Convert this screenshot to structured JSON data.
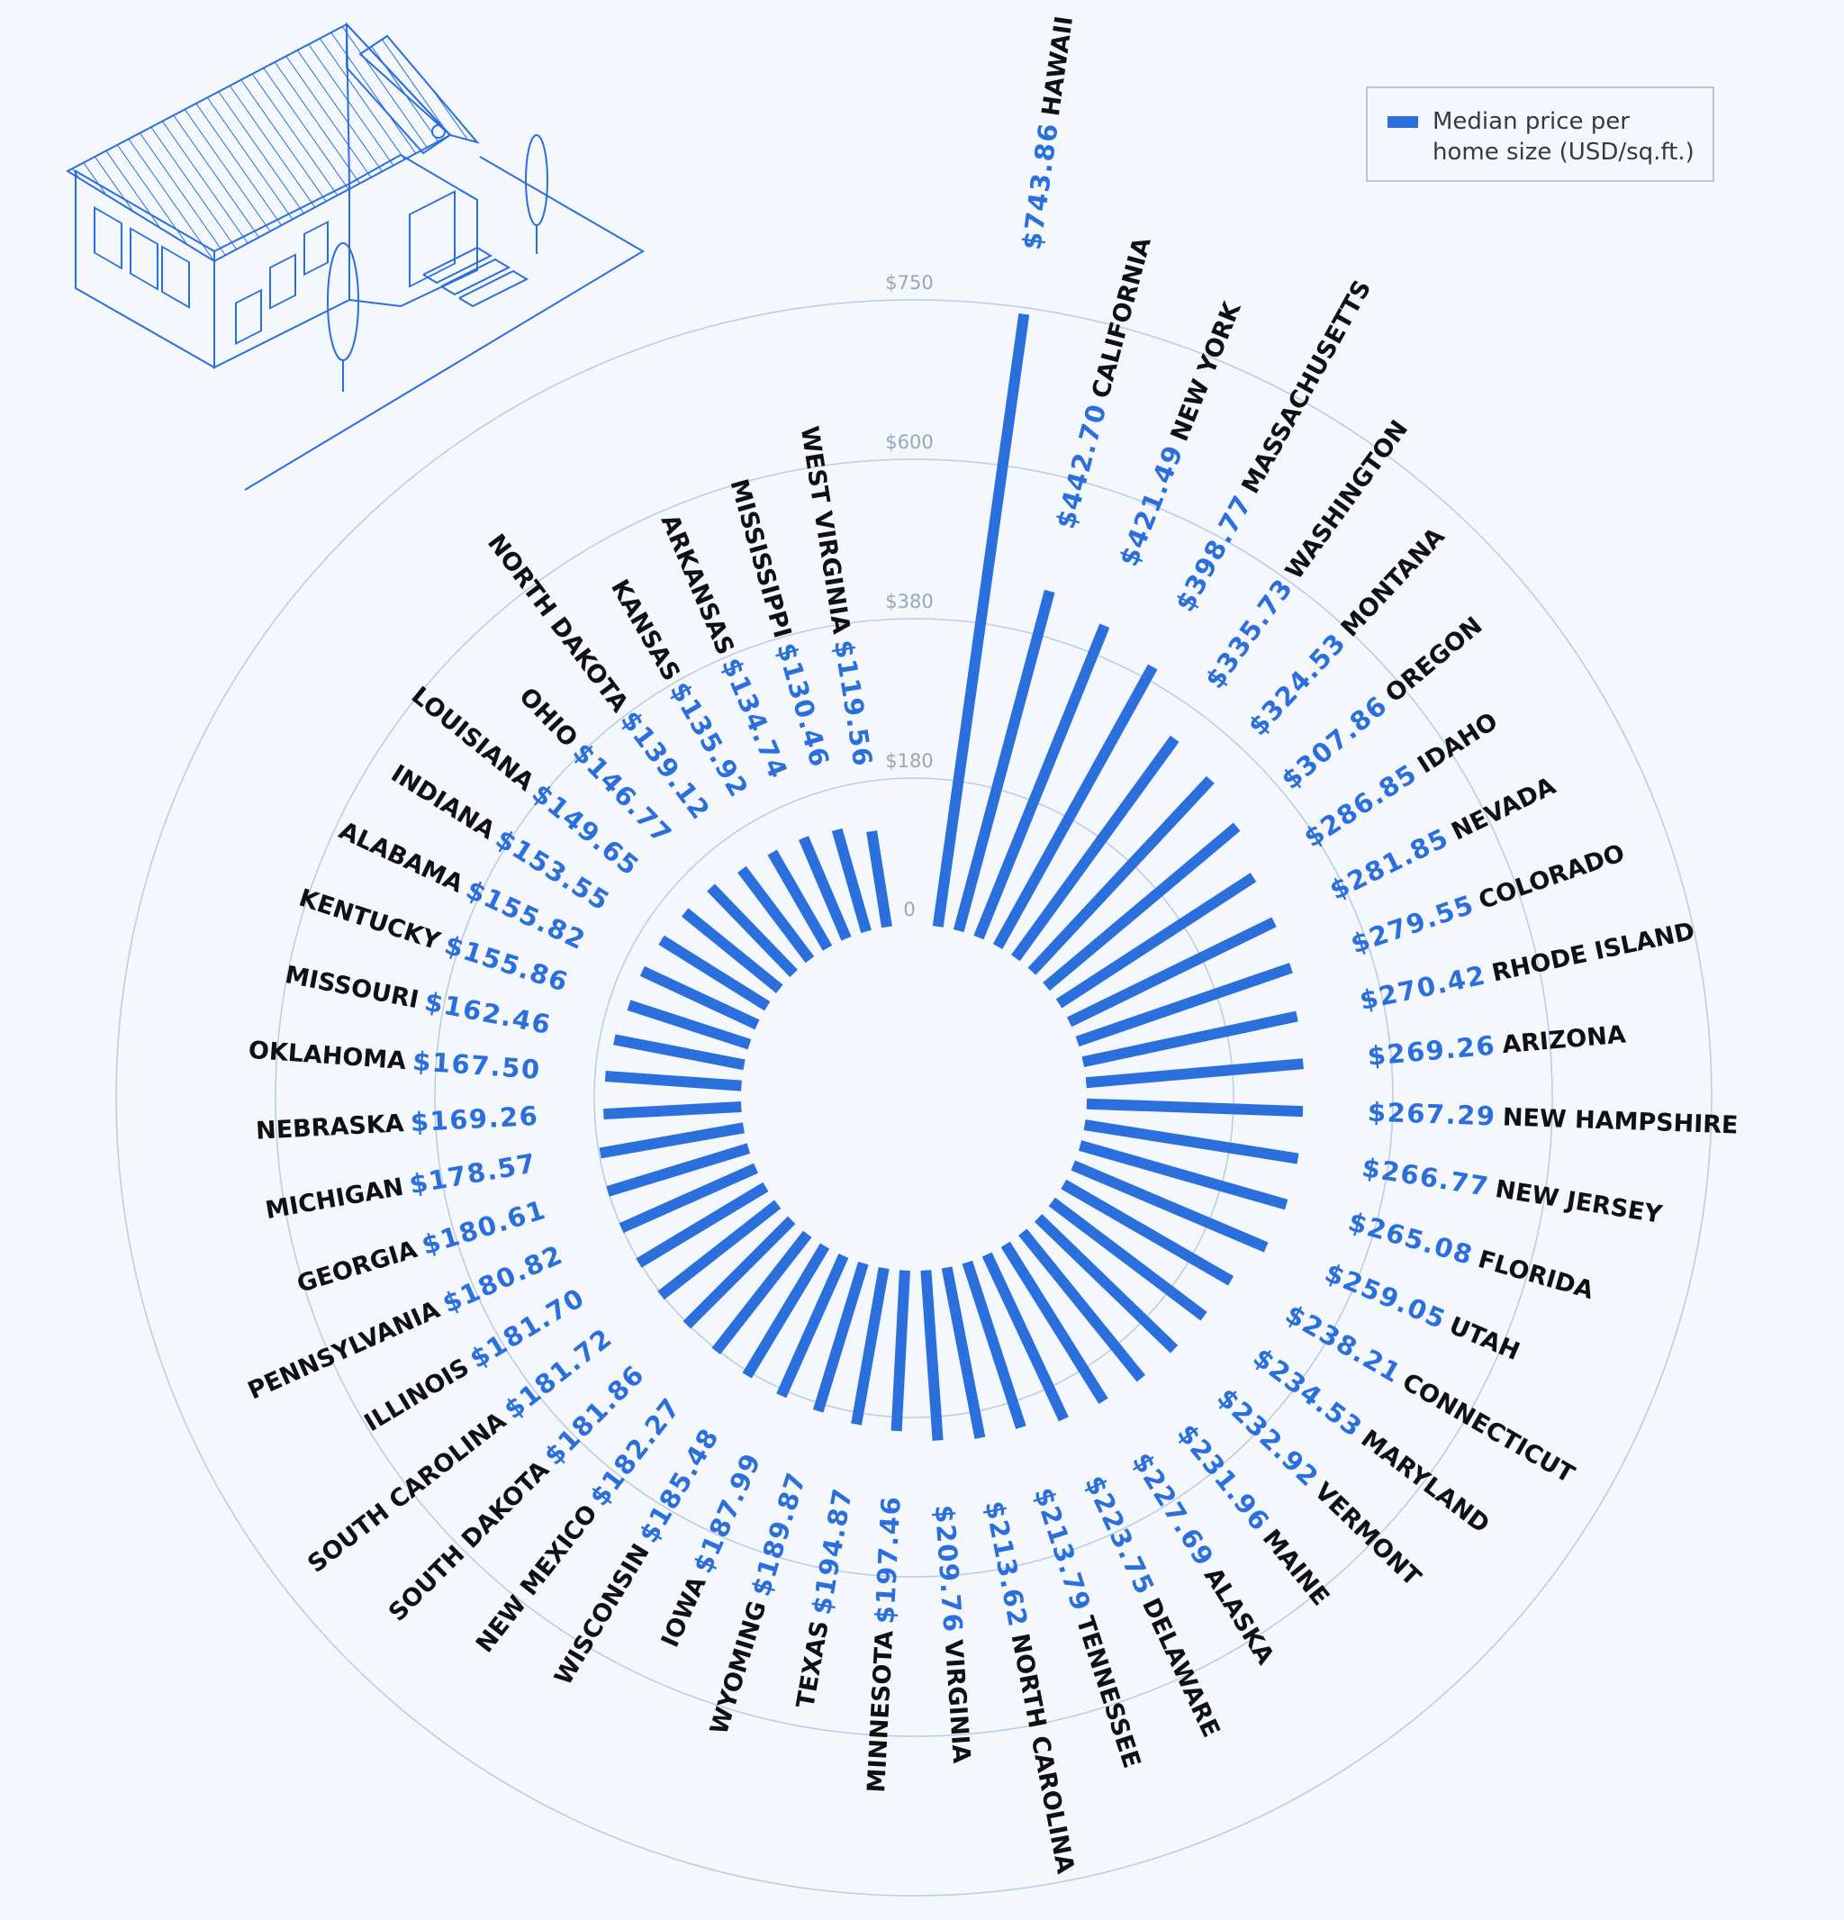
{
  "chart_data": {
    "type": "radial-bar",
    "title": "",
    "legend": {
      "label_line1": "Median price per",
      "label_line2": "home size (USD/sq.ft.)",
      "placement": "top-right"
    },
    "value_unit": "USD/sq.ft.",
    "ticks": [
      {
        "value": 0,
        "label": "0"
      },
      {
        "value": 180,
        "label": "$180"
      },
      {
        "value": 380,
        "label": "$380"
      },
      {
        "value": 600,
        "label": "$600"
      },
      {
        "value": 750,
        "label": "$750"
      }
    ],
    "categories": [
      "HAWAII",
      "CALIFORNIA",
      "NEW YORK",
      "MASSACHUSETTS",
      "WASHINGTON",
      "MONTANA",
      "OREGON",
      "IDAHO",
      "NEVADA",
      "COLORADO",
      "RHODE ISLAND",
      "ARIZONA",
      "NEW HAMPSHIRE",
      "NEW JERSEY",
      "FLORIDA",
      "UTAH",
      "CONNECTICUT",
      "MARYLAND",
      "VERMONT",
      "MAINE",
      "ALASKA",
      "DELAWARE",
      "TENNESSEE",
      "NORTH CAROLINA",
      "VIRGINIA",
      "MINNESOTA",
      "TEXAS",
      "WYOMING",
      "IOWA",
      "WISCONSIN",
      "NEW MEXICO",
      "SOUTH DAKOTA",
      "SOUTH CAROLINA",
      "ILLINOIS",
      "PENNSYLVANIA",
      "GEORGIA",
      "MICHIGAN",
      "NEBRASKA",
      "OKLAHOMA",
      "MISSOURI",
      "KENTUCKY",
      "ALABAMA",
      "INDIANA",
      "LOUISIANA",
      "OHIO",
      "NORTH DAKOTA",
      "KANSAS",
      "ARKANSAS",
      "MISSISSIPPI",
      "WEST VIRGINIA"
    ],
    "values": [
      743.86,
      442.7,
      421.49,
      398.77,
      335.73,
      324.53,
      307.86,
      286.85,
      281.85,
      279.55,
      270.42,
      269.26,
      267.29,
      266.77,
      265.08,
      259.05,
      238.21,
      234.53,
      232.92,
      231.96,
      227.69,
      223.75,
      213.79,
      213.62,
      209.76,
      197.46,
      194.87,
      189.87,
      187.99,
      185.48,
      182.27,
      181.86,
      181.72,
      181.7,
      180.82,
      180.61,
      178.57,
      169.26,
      167.5,
      162.46,
      155.86,
      155.82,
      153.55,
      149.65,
      146.77,
      139.12,
      135.92,
      134.74,
      130.46,
      119.56
    ],
    "value_labels": [
      "$743.86",
      "$442.70",
      "$421.49",
      "$398.77",
      "$335.73",
      "$324.53",
      "$307.86",
      "$286.85",
      "$281.85",
      "$279.55",
      "$270.42",
      "$269.26",
      "$267.29",
      "$266.77",
      "$265.08",
      "$259.05",
      "$238.21",
      "$234.53",
      "$232.92",
      "$231.96",
      "$227.69",
      "$223.75",
      "$213.79",
      "$213.62",
      "$209.76",
      "$197.46",
      "$194.87",
      "$189.87",
      "$187.99",
      "$185.48",
      "$182.27",
      "$181.86",
      "$181.72",
      "$181.70",
      "$180.82",
      "$180.61",
      "$178.57",
      "$169.26",
      "$167.50",
      "$162.46",
      "$155.86",
      "$155.82",
      "$153.55",
      "$149.65",
      "$146.77",
      "$139.12",
      "$135.92",
      "$134.74",
      "$130.46",
      "$119.56"
    ],
    "colors": {
      "bar": "#2a6fdb",
      "grid": "#bccde2",
      "background": "#f4f8fd"
    }
  }
}
